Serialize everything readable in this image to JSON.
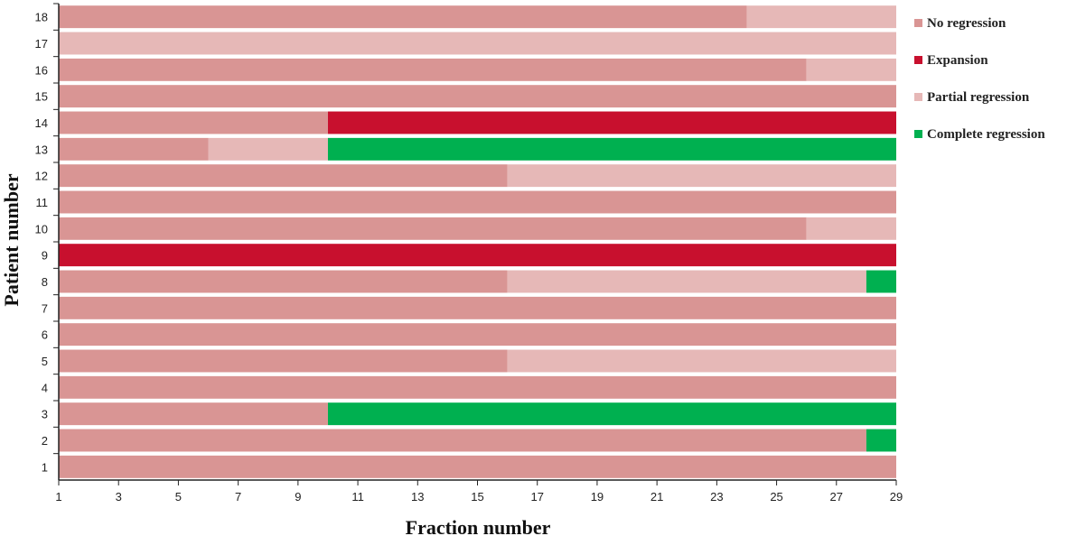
{
  "chart_data": {
    "type": "bar",
    "orientation": "horizontal-stacked",
    "xlabel": "Fraction number",
    "ylabel": "Patient number",
    "xlim": [
      1,
      29
    ],
    "x_ticks": [
      1,
      3,
      5,
      7,
      9,
      11,
      13,
      15,
      17,
      19,
      21,
      23,
      25,
      27,
      29
    ],
    "legend_position": "right",
    "legend": [
      {
        "key": "no",
        "label": "No regression",
        "color": "#d99594"
      },
      {
        "key": "exp",
        "label": "Expansion",
        "color": "#c8102e"
      },
      {
        "key": "part",
        "label": "Partial regression",
        "color": "#e6b8b7"
      },
      {
        "key": "comp",
        "label": "Complete regression",
        "color": "#00b050"
      }
    ],
    "patients": [
      {
        "id": "1",
        "segments": [
          {
            "state": "no",
            "from": 1,
            "to": 29
          }
        ]
      },
      {
        "id": "2",
        "segments": [
          {
            "state": "no",
            "from": 1,
            "to": 28
          },
          {
            "state": "comp",
            "from": 28,
            "to": 29
          }
        ]
      },
      {
        "id": "3",
        "segments": [
          {
            "state": "no",
            "from": 1,
            "to": 10
          },
          {
            "state": "comp",
            "from": 10,
            "to": 29
          }
        ]
      },
      {
        "id": "4",
        "segments": [
          {
            "state": "no",
            "from": 1,
            "to": 29
          }
        ]
      },
      {
        "id": "5",
        "segments": [
          {
            "state": "no",
            "from": 1,
            "to": 16
          },
          {
            "state": "part",
            "from": 16,
            "to": 29
          }
        ]
      },
      {
        "id": "6",
        "segments": [
          {
            "state": "no",
            "from": 1,
            "to": 29
          }
        ]
      },
      {
        "id": "7",
        "segments": [
          {
            "state": "no",
            "from": 1,
            "to": 29
          }
        ]
      },
      {
        "id": "8",
        "segments": [
          {
            "state": "no",
            "from": 1,
            "to": 16
          },
          {
            "state": "part",
            "from": 16,
            "to": 28
          },
          {
            "state": "comp",
            "from": 28,
            "to": 29
          }
        ]
      },
      {
        "id": "9",
        "segments": [
          {
            "state": "exp",
            "from": 1,
            "to": 29
          }
        ]
      },
      {
        "id": "10",
        "segments": [
          {
            "state": "no",
            "from": 1,
            "to": 26
          },
          {
            "state": "part",
            "from": 26,
            "to": 29
          }
        ]
      },
      {
        "id": "11",
        "segments": [
          {
            "state": "no",
            "from": 1,
            "to": 29
          }
        ]
      },
      {
        "id": "12",
        "segments": [
          {
            "state": "no",
            "from": 1,
            "to": 16
          },
          {
            "state": "part",
            "from": 16,
            "to": 29
          }
        ]
      },
      {
        "id": "13",
        "segments": [
          {
            "state": "no",
            "from": 1,
            "to": 6
          },
          {
            "state": "part",
            "from": 6,
            "to": 10
          },
          {
            "state": "comp",
            "from": 10,
            "to": 29
          }
        ]
      },
      {
        "id": "14",
        "segments": [
          {
            "state": "no",
            "from": 1,
            "to": 10
          },
          {
            "state": "exp",
            "from": 10,
            "to": 29
          }
        ]
      },
      {
        "id": "15",
        "segments": [
          {
            "state": "no",
            "from": 1,
            "to": 29
          }
        ]
      },
      {
        "id": "16",
        "segments": [
          {
            "state": "no",
            "from": 1,
            "to": 26
          },
          {
            "state": "part",
            "from": 26,
            "to": 29
          }
        ]
      },
      {
        "id": "17",
        "segments": [
          {
            "state": "part",
            "from": 1,
            "to": 29
          }
        ]
      },
      {
        "id": "18",
        "segments": [
          {
            "state": "no",
            "from": 1,
            "to": 24
          },
          {
            "state": "part",
            "from": 24,
            "to": 29
          }
        ]
      }
    ]
  }
}
